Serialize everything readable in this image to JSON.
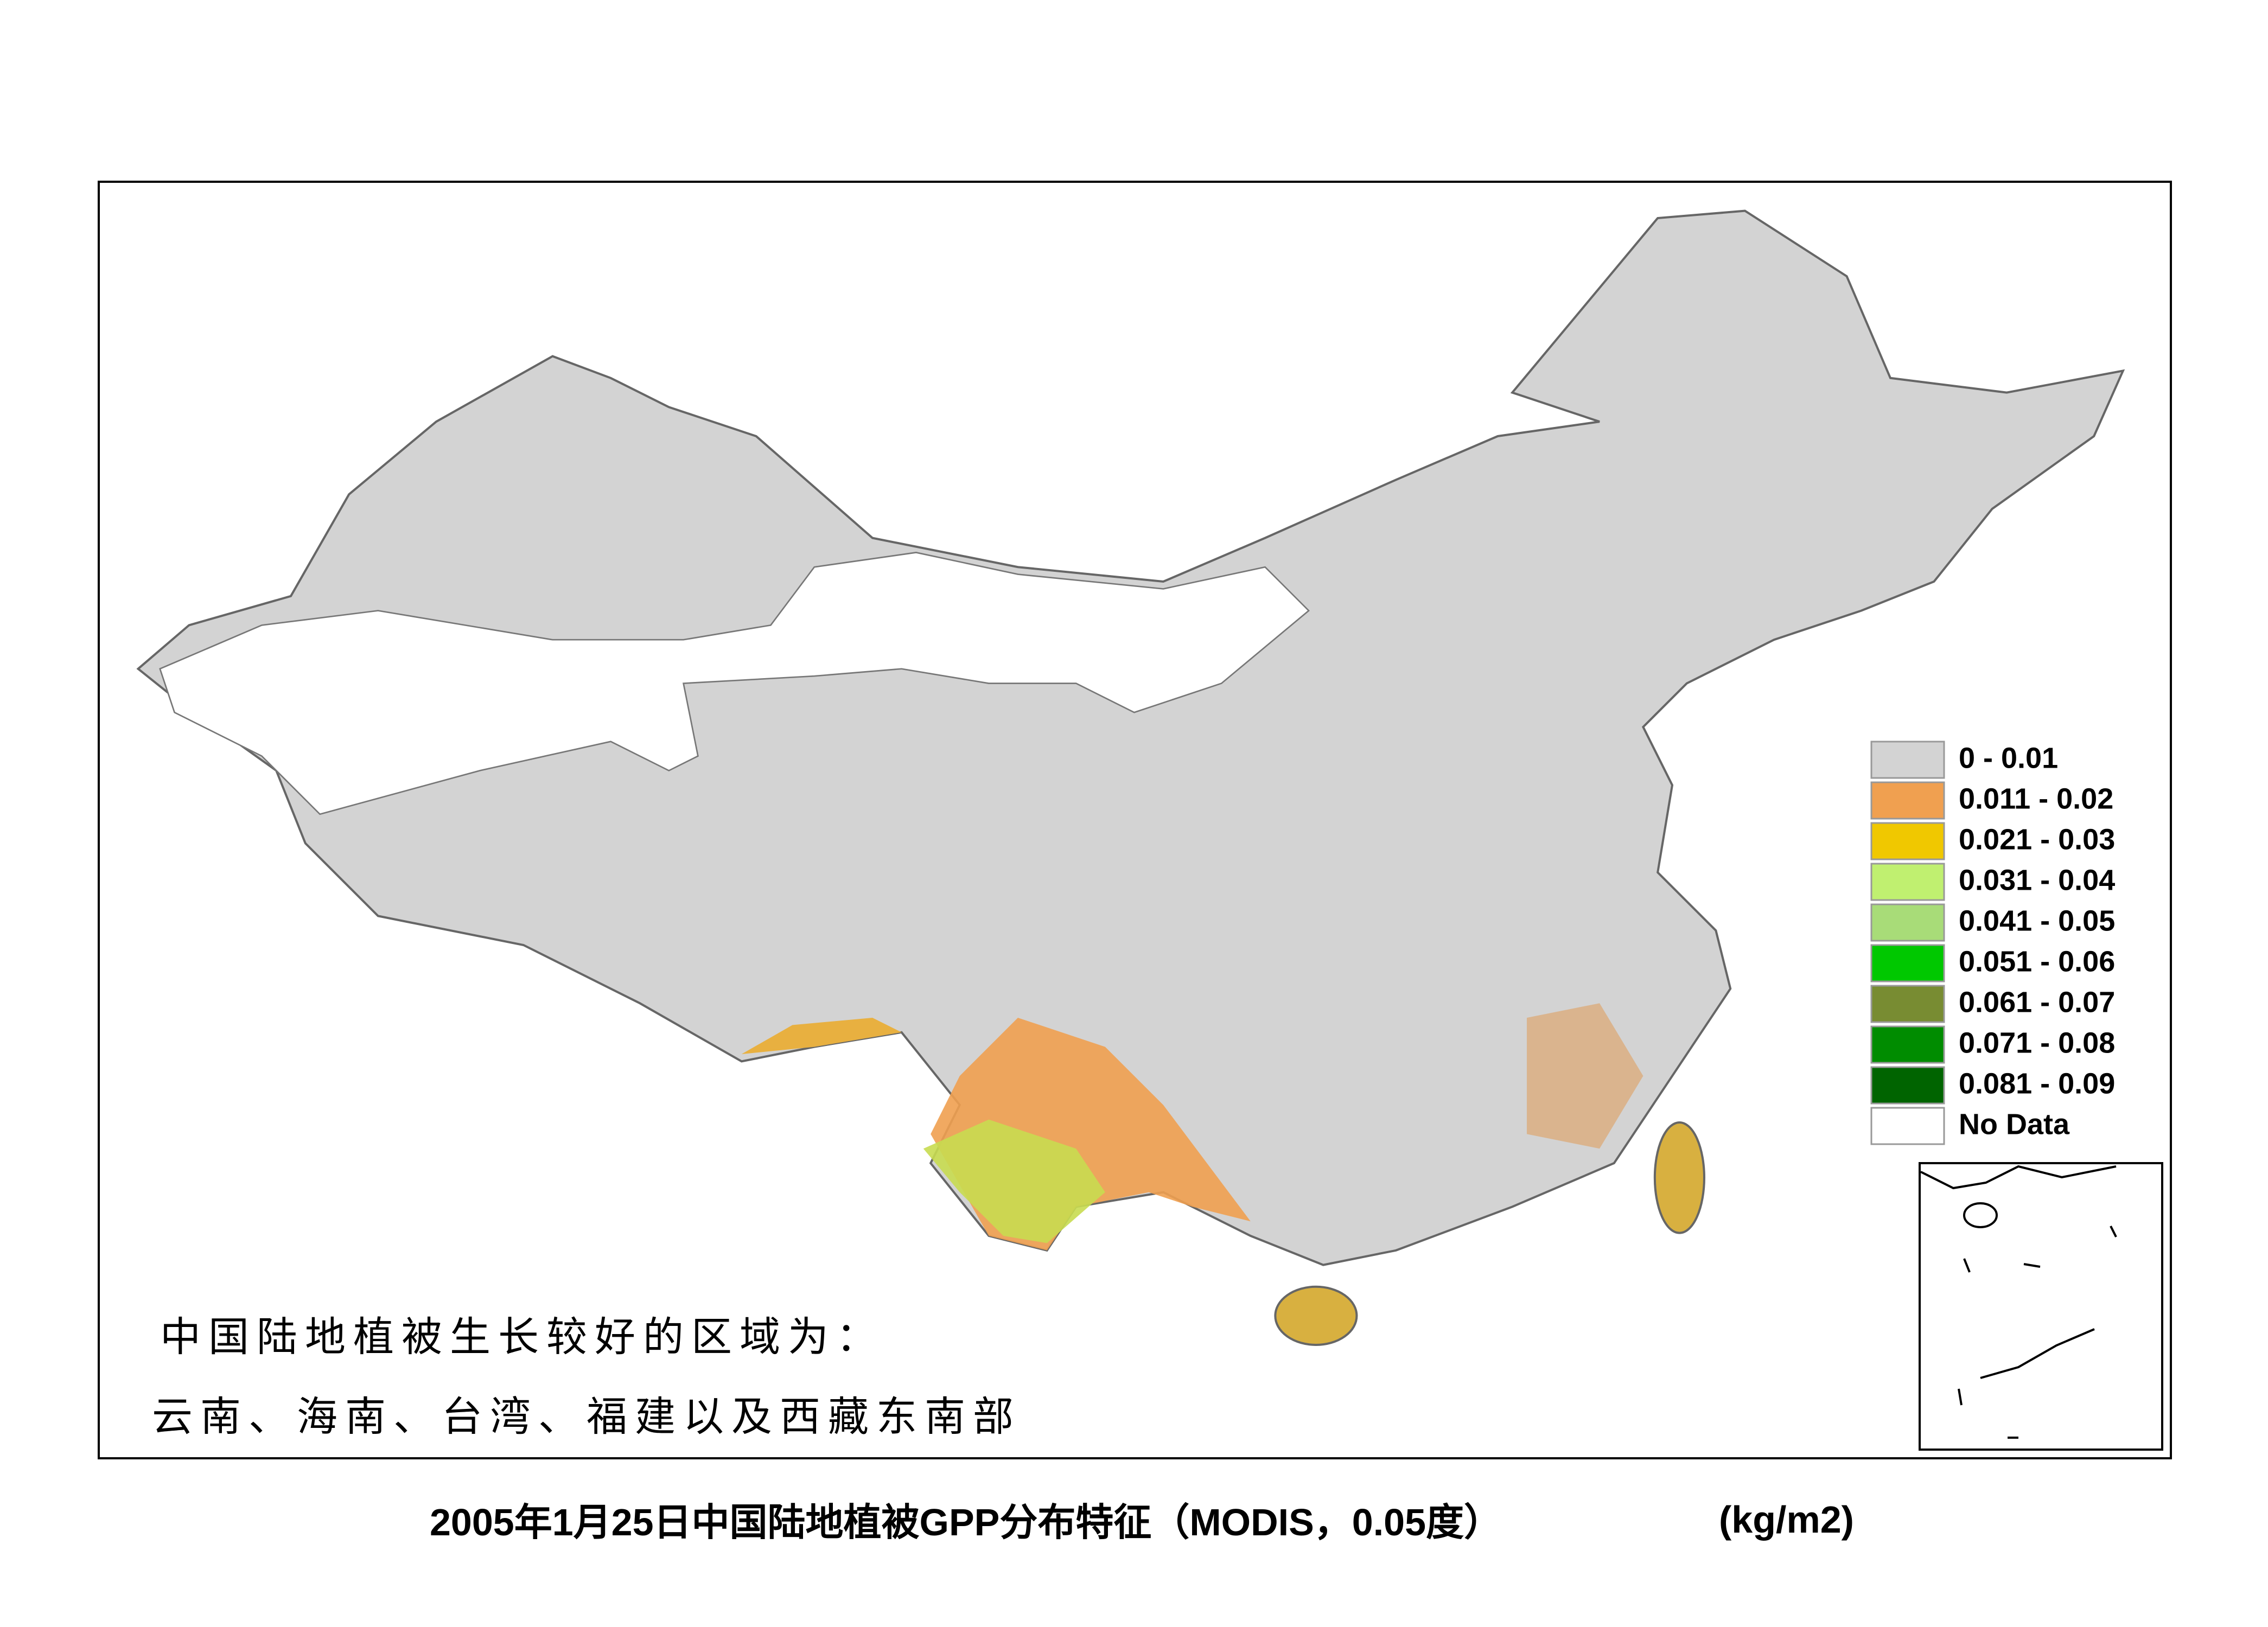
{
  "map": {
    "title": "2005年1月25日中国陆地植被GPP分布特征（MODIS，0.05度）",
    "unit": "(kg/m2)",
    "annotation": [
      "中国陆地植被生长较好的区域为：",
      "云南、海南、台湾、福建以及西藏东南部"
    ],
    "legend": [
      {
        "label": "0 - 0.01",
        "color": "#d3d3d3"
      },
      {
        "label": "0.011 - 0.02",
        "color": "#f0a050"
      },
      {
        "label": "0.021 - 0.03",
        "color": "#f0c800"
      },
      {
        "label": "0.031 - 0.04",
        "color": "#c0f070"
      },
      {
        "label": "0.041 - 0.05",
        "color": "#a8dc78"
      },
      {
        "label": "0.051 - 0.06",
        "color": "#00c800"
      },
      {
        "label": "0.061 - 0.07",
        "color": "#788c32"
      },
      {
        "label": "0.071 - 0.08",
        "color": "#008c00"
      },
      {
        "label": "0.081 - 0.09",
        "color": "#006400"
      },
      {
        "label": "No Data",
        "color": "#ffffff"
      }
    ]
  }
}
